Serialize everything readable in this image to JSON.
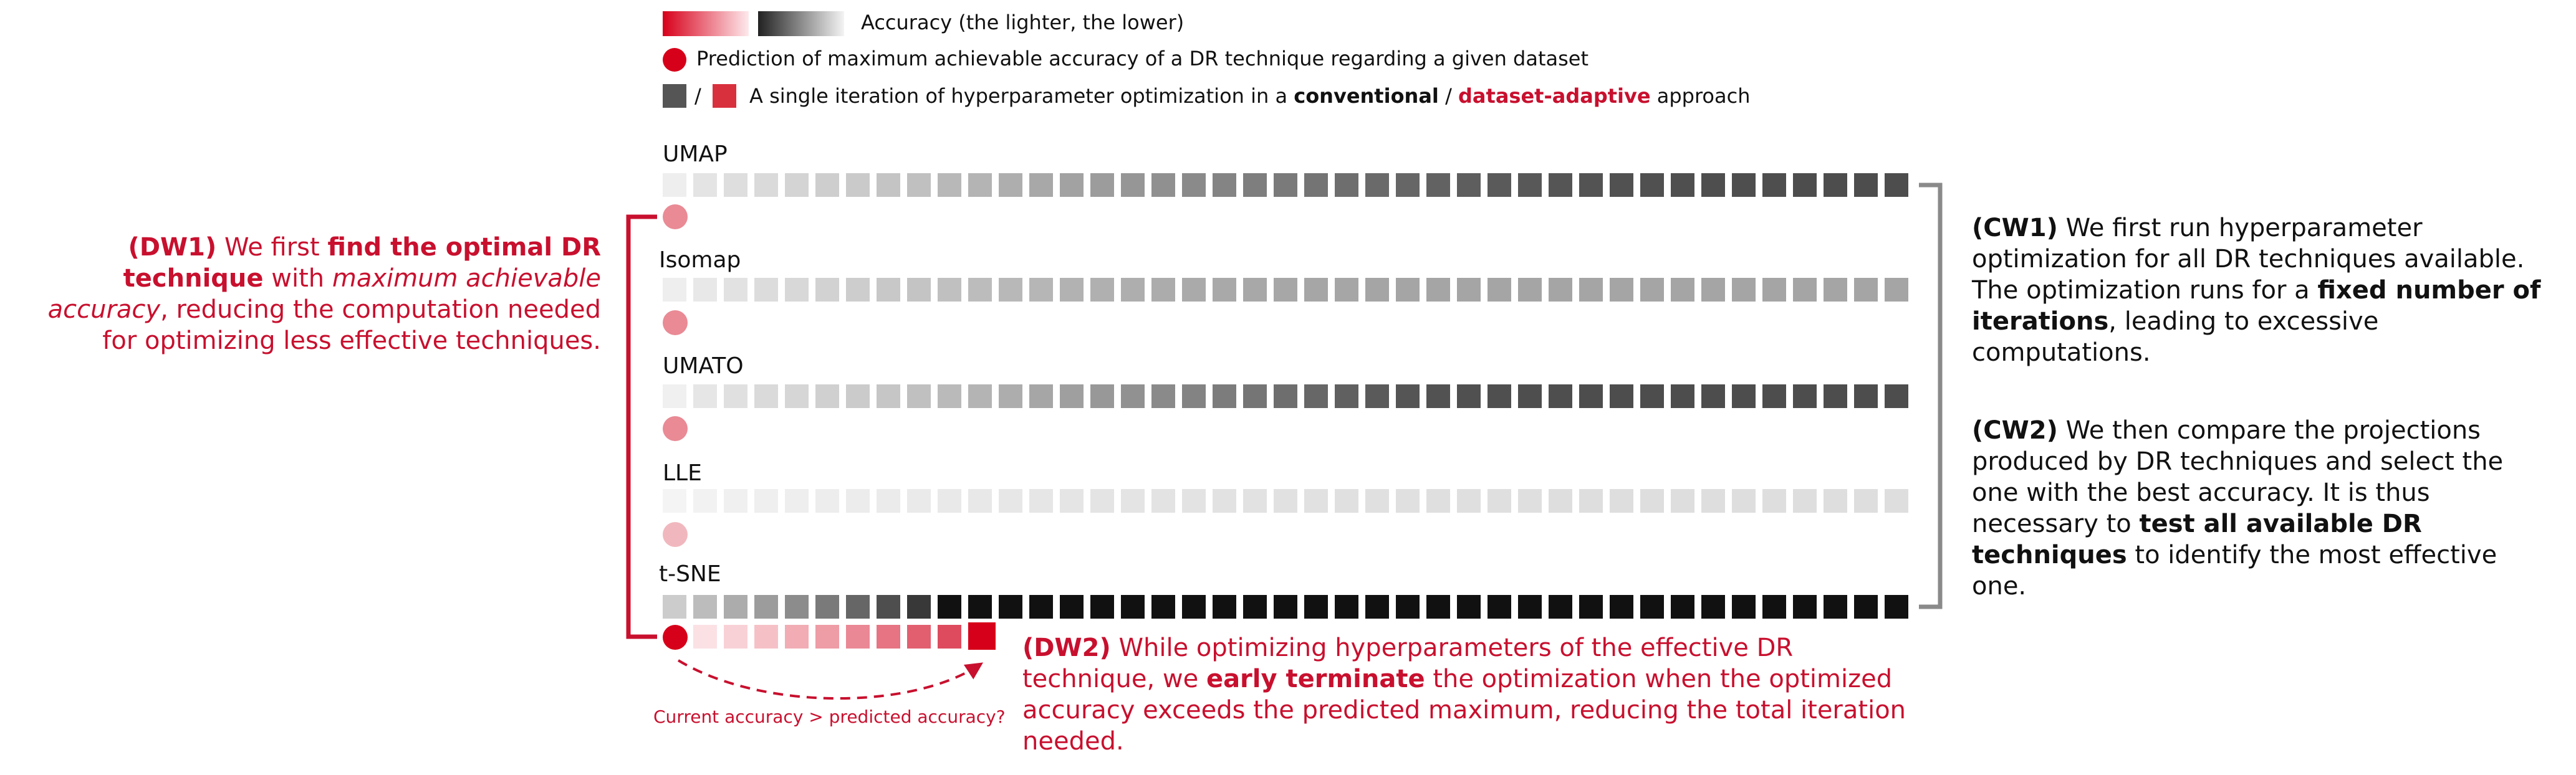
{
  "legend": {
    "accuracy_text": "Accuracy (the lighter, the lower)",
    "prediction_text": "Prediction of maximum achievable accuracy of a DR technique regarding a given dataset",
    "iteration_pre": "A single iteration of hyperparameter optimization in a",
    "iteration_conventional": "conventional",
    "iteration_slash": "/",
    "iteration_adaptive": "dataset-adaptive",
    "iteration_post": "approach",
    "slash_between_squares": "/"
  },
  "techniques": [
    {
      "name": "UMAP",
      "prediction_color": "#e98a95",
      "colors": [
        "#eeeeee",
        "#e4e4e4",
        "#dedede",
        "#dadada",
        "#d4d4d4",
        "#cecece",
        "#cacaca",
        "#c4c4c4",
        "#c0c0c0",
        "#b8b8b8",
        "#b4b4b4",
        "#aeaeae",
        "#a8a8a8",
        "#a2a2a2",
        "#9c9c9c",
        "#969696",
        "#909090",
        "#8a8a8a",
        "#848484",
        "#7e7e7e",
        "#7a7a7a",
        "#747474",
        "#6e6e6e",
        "#6a6a6a",
        "#666666",
        "#626262",
        "#5e5e5e",
        "#5a5a5a",
        "#585858",
        "#555555",
        "#535353",
        "#515151",
        "#505050",
        "#4f4f4f",
        "#4e4e4e",
        "#4e4e4e",
        "#4e4e4e",
        "#4d4d4d",
        "#4d4d4d",
        "#4d4d4d",
        "#4d4d4d"
      ]
    },
    {
      "name": "Isomap",
      "prediction_color": "#e98a95",
      "colors": [
        "#eeeeee",
        "#e8e8e8",
        "#e2e2e2",
        "#dcdcdc",
        "#d8d8d8",
        "#d2d2d2",
        "#cdcdcd",
        "#c8c8c8",
        "#c4c4c4",
        "#c0c0c0",
        "#bcbcbc",
        "#b8b8b8",
        "#b6b6b6",
        "#b2b2b2",
        "#b0b0b0",
        "#aeaeae",
        "#acacac",
        "#aaaaaa",
        "#a9a9a9",
        "#a8a8a8",
        "#a7a7a7",
        "#a6a6a6",
        "#a6a6a6",
        "#a5a5a5",
        "#a5a5a5",
        "#a5a5a5",
        "#a5a5a5",
        "#a5a5a5",
        "#a5a5a5",
        "#a5a5a5",
        "#a5a5a5",
        "#a5a5a5",
        "#a5a5a5",
        "#a5a5a5",
        "#a5a5a5",
        "#a5a5a5",
        "#a5a5a5",
        "#a5a5a5",
        "#a5a5a5",
        "#a5a5a5",
        "#a5a5a5"
      ]
    },
    {
      "name": "UMATO",
      "prediction_color": "#e98a95",
      "colors": [
        "#f0f0f0",
        "#e6e6e6",
        "#e0e0e0",
        "#dadada",
        "#d6d6d6",
        "#d0d0d0",
        "#cbcbcb",
        "#c6c6c6",
        "#c0c0c0",
        "#bababa",
        "#b4b4b4",
        "#adadad",
        "#a6a6a6",
        "#9f9f9f",
        "#989898",
        "#919191",
        "#8a8a8a",
        "#838383",
        "#7c7c7c",
        "#757575",
        "#6e6e6e",
        "#676767",
        "#606060",
        "#5a5a5a",
        "#555555",
        "#525252",
        "#505050",
        "#4f4f4f",
        "#4e4e4e",
        "#4e4e4e",
        "#4d4d4d",
        "#4d4d4d",
        "#4d4d4d",
        "#4d4d4d",
        "#4d4d4d",
        "#4d4d4d",
        "#4d4d4d",
        "#4d4d4d",
        "#4d4d4d",
        "#4d4d4d",
        "#4d4d4d"
      ]
    },
    {
      "name": "LLE",
      "prediction_color": "#f0b8be",
      "colors": [
        "#f4f4f4",
        "#f2f2f2",
        "#f0f0f0",
        "#efefef",
        "#eeeeee",
        "#ededed",
        "#ececec",
        "#ebebeb",
        "#eaeaea",
        "#e9e9e9",
        "#e8e8e8",
        "#e7e7e7",
        "#e6e6e6",
        "#e5e5e5",
        "#e4e4e4",
        "#e4e4e4",
        "#e3e3e3",
        "#e3e3e3",
        "#e2e2e2",
        "#e2e2e2",
        "#e1e1e1",
        "#e1e1e1",
        "#e0e0e0",
        "#e0e0e0",
        "#e0e0e0",
        "#dfdfdf",
        "#dfdfdf",
        "#dfdfdf",
        "#dfdfdf",
        "#dedede",
        "#dedede",
        "#dedede",
        "#dedede",
        "#dedede",
        "#dedede",
        "#dedede",
        "#dedede",
        "#dedede",
        "#dedede",
        "#dedede",
        "#dedede"
      ]
    },
    {
      "name": "t-SNE",
      "prediction_color": "#d7001a",
      "colors": [
        "#cccccc",
        "#bcbcbc",
        "#acacac",
        "#9c9c9c",
        "#8c8c8c",
        "#7a7a7a",
        "#666666",
        "#4e4e4e",
        "#383838",
        "#111111",
        "#111111",
        "#111111",
        "#111111",
        "#111111",
        "#111111",
        "#111111",
        "#111111",
        "#111111",
        "#111111",
        "#111111",
        "#111111",
        "#111111",
        "#111111",
        "#111111",
        "#111111",
        "#111111",
        "#111111",
        "#111111",
        "#111111",
        "#111111",
        "#111111",
        "#111111",
        "#111111",
        "#111111",
        "#111111",
        "#111111",
        "#111111",
        "#111111",
        "#111111",
        "#111111",
        "#111111"
      ],
      "adaptive_colors": [
        "#fbe1e4",
        "#f8d1d6",
        "#f5c1c7",
        "#f1acb4",
        "#ee9ca6",
        "#ea8895",
        "#e67483",
        "#e25f70",
        "#de4b5e",
        "#d7001a"
      ]
    }
  ],
  "colors": {
    "accent_red": "#c8102e",
    "prediction_dot": "#d7001a",
    "conventional_square": "#555555",
    "adaptive_square": "#d9303e",
    "right_bracket": "#8a8a8a"
  },
  "dw1": {
    "bold_prefix": "(DW1)",
    "text1": "We first",
    "bold1": "find the optimal DR technique",
    "text2": "with",
    "italic1": "maximum achievable accuracy",
    "text3": ", reducing the computation needed for optimizing less effective techniques."
  },
  "dw2": {
    "bold_prefix": "(DW2)",
    "text1": "While optimizing hyperparameters of the effective DR technique, we",
    "bold1": "early terminate",
    "text2": "the optimization when the optimized accuracy exceeds the predicted maximum, reducing the total iteration needed."
  },
  "cw1": {
    "bold_prefix": "(CW1)",
    "text1": "We first run hyperparameter optimization for all DR techniques available. The optimization runs for a",
    "bold1": "fixed number of iterations",
    "text2": ", leading to excessive computations."
  },
  "cw2": {
    "bold_prefix": "(CW2)",
    "text1": "We then compare the projections produced by DR techniques and select the one with the best accuracy. It is thus necessary to",
    "bold1": "test all available DR techniques",
    "text2": "to identify the most effective one."
  },
  "condition_label": "Current accuracy > predicted accuracy?"
}
